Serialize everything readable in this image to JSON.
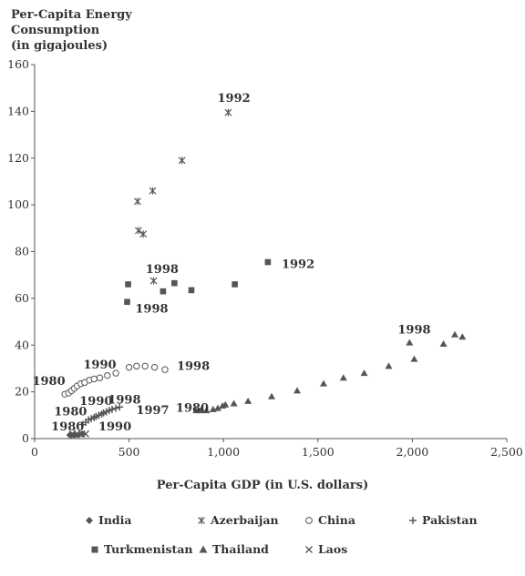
{
  "chart_data": {
    "type": "scatter",
    "ylabel_lines": [
      "Per-Capita Energy",
      "Consumption",
      "(in gigajoules)"
    ],
    "xlabel": "Per-Capita GDP (in U.S. dollars)",
    "xlim": [
      0,
      2500
    ],
    "ylim": [
      0,
      160
    ],
    "xticks": [
      0,
      500,
      1000,
      1500,
      2000,
      2500
    ],
    "xtick_labels": [
      "0",
      "500",
      "1,000",
      "1,500",
      "2,000",
      "2,500"
    ],
    "yticks": [
      0,
      20,
      40,
      60,
      80,
      100,
      120,
      140,
      160
    ],
    "ytick_labels": [
      "0",
      "20",
      "40",
      "60",
      "80",
      "100",
      "120",
      "140",
      "160"
    ],
    "grid": false,
    "legend_position": "bottom",
    "series": [
      {
        "name": "India",
        "marker": "diamond",
        "points": [
          [
            185,
            1.5
          ],
          [
            195,
            1.5
          ],
          [
            205,
            1.5
          ],
          [
            215,
            1.5
          ],
          [
            230,
            1.5
          ],
          [
            250,
            2
          ]
        ]
      },
      {
        "name": "Azerbaijan",
        "marker": "asterisk",
        "points": [
          [
            1025,
            139.5
          ],
          [
            780,
            119
          ],
          [
            625,
            106
          ],
          [
            545,
            101.5
          ],
          [
            550,
            89
          ],
          [
            575,
            87.5
          ],
          [
            630,
            67.5
          ]
        ]
      },
      {
        "name": "China",
        "marker": "circle",
        "points": [
          [
            160,
            19
          ],
          [
            180,
            19.5
          ],
          [
            195,
            20.5
          ],
          [
            210,
            21.5
          ],
          [
            225,
            22.5
          ],
          [
            245,
            23.5
          ],
          [
            265,
            24
          ],
          [
            290,
            25
          ],
          [
            315,
            25.5
          ],
          [
            345,
            26
          ],
          [
            385,
            27
          ],
          [
            430,
            28
          ],
          [
            500,
            30.5
          ],
          [
            540,
            31
          ],
          [
            585,
            31
          ],
          [
            635,
            30.5
          ],
          [
            690,
            29.5
          ]
        ]
      },
      {
        "name": "Pakistan",
        "marker": "plus",
        "points": [
          [
            255,
            6
          ],
          [
            270,
            7
          ],
          [
            285,
            8
          ],
          [
            300,
            8.5
          ],
          [
            315,
            9
          ],
          [
            325,
            9.5
          ],
          [
            340,
            10
          ],
          [
            355,
            10.5
          ],
          [
            365,
            11
          ],
          [
            380,
            11.5
          ],
          [
            395,
            12
          ],
          [
            410,
            12.5
          ],
          [
            430,
            13
          ],
          [
            450,
            13.5
          ]
        ]
      },
      {
        "name": "Turkmenistan",
        "marker": "square",
        "points": [
          [
            1235,
            75.5
          ],
          [
            1060,
            66
          ],
          [
            495,
            66
          ],
          [
            740,
            66.5
          ],
          [
            490,
            58.5
          ],
          [
            680,
            63
          ],
          [
            830,
            63.5
          ]
        ]
      },
      {
        "name": "Thailand",
        "marker": "triangle",
        "points": [
          [
            855,
            12
          ],
          [
            880,
            12
          ],
          [
            910,
            12
          ],
          [
            945,
            12.5
          ],
          [
            970,
            13
          ],
          [
            995,
            14
          ],
          [
            1010,
            14.5
          ],
          [
            1055,
            15
          ],
          [
            1130,
            16
          ],
          [
            1255,
            18
          ],
          [
            1390,
            20.5
          ],
          [
            1530,
            23.5
          ],
          [
            1635,
            26
          ],
          [
            1745,
            28
          ],
          [
            1875,
            31
          ],
          [
            1985,
            41
          ],
          [
            2010,
            34
          ],
          [
            2165,
            40.5
          ],
          [
            2225,
            44.5
          ],
          [
            2265,
            43.5
          ]
        ]
      },
      {
        "name": "Laos",
        "marker": "x",
        "points": [
          [
            200,
            2
          ],
          [
            225,
            2
          ],
          [
            250,
            2
          ],
          [
            270,
            2
          ]
        ]
      }
    ],
    "annotations": [
      {
        "text": "1992",
        "x": 1055,
        "y": 145.5
      },
      {
        "text": "1998",
        "x": 675,
        "y": 72.5
      },
      {
        "text": "1998",
        "x": 620,
        "y": 55.5
      },
      {
        "text": "1992",
        "x": 1395,
        "y": 74.5
      },
      {
        "text": "1998",
        "x": 2010,
        "y": 46.5
      },
      {
        "text": "1990",
        "x": 345,
        "y": 31.5
      },
      {
        "text": "1998",
        "x": 840,
        "y": 31
      },
      {
        "text": "1980",
        "x": 75,
        "y": 24.5
      },
      {
        "text": "1990",
        "x": 325,
        "y": 16
      },
      {
        "text": "1998",
        "x": 475,
        "y": 16.5
      },
      {
        "text": "1980",
        "x": 190,
        "y": 11.5
      },
      {
        "text": "1997",
        "x": 625,
        "y": 12
      },
      {
        "text": "1980",
        "x": 835,
        "y": 13
      },
      {
        "text": "1980",
        "x": 175,
        "y": 5
      },
      {
        "text": "1990",
        "x": 425,
        "y": 5
      }
    ]
  },
  "legend": {
    "items": [
      {
        "label": "India",
        "marker": "diamond"
      },
      {
        "label": "Azerbaijan",
        "marker": "asterisk"
      },
      {
        "label": "China",
        "marker": "circle"
      },
      {
        "label": "Pakistan",
        "marker": "plus"
      },
      {
        "label": "Turkmenistan",
        "marker": "square"
      },
      {
        "label": "Thailand",
        "marker": "triangle"
      },
      {
        "label": "Laos",
        "marker": "x"
      }
    ]
  }
}
